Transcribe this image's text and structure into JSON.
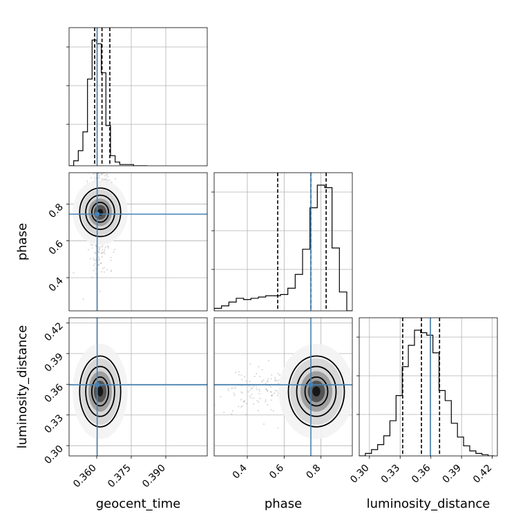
{
  "chart_data": {
    "type": "corner",
    "parameters": [
      "geocent_time",
      "phase",
      "luminosity_distance"
    ],
    "axis_labels": {
      "geocent_time": "geocent_time",
      "phase": "phase",
      "luminosity_distance": "luminosity_distance"
    },
    "ranges": {
      "geocent_time": [
        0.348,
        0.408
      ],
      "phase": [
        0.22,
        0.97
      ],
      "luminosity_distance": [
        0.29,
        0.425
      ]
    },
    "ticks": {
      "geocent_time": {
        "values": [
          0.36,
          0.375,
          0.39
        ],
        "labels": [
          "0.360",
          "0.375",
          "0.390"
        ]
      },
      "phase": {
        "values": [
          0.4,
          0.6,
          0.8
        ],
        "labels": [
          "0.4",
          "0.6",
          "0.8"
        ]
      },
      "luminosity_distance": {
        "values": [
          0.3,
          0.33,
          0.36,
          0.39,
          0.42
        ],
        "labels": [
          "0.30",
          "0.33",
          "0.36",
          "0.39",
          "0.42"
        ]
      }
    },
    "truths": {
      "geocent_time": 0.3602,
      "phase": 0.745,
      "luminosity_distance": 0.3595
    },
    "quantiles": {
      "geocent_time": [
        0.3591,
        0.3623,
        0.3657
      ],
      "phase": [
        0.565,
        0.745,
        0.828
      ],
      "luminosity_distance": [
        0.3325,
        0.3508,
        0.3685
      ]
    },
    "histograms": {
      "geocent_time": {
        "bin_edges": [
          0.348,
          0.35,
          0.352,
          0.354,
          0.356,
          0.358,
          0.36,
          0.362,
          0.364,
          0.366,
          0.368,
          0.37,
          0.372,
          0.374,
          0.376,
          0.378,
          0.38,
          0.382
        ],
        "counts": [
          0,
          4,
          12,
          27,
          69,
          100,
          97,
          74,
          32,
          8,
          3,
          1,
          1,
          1,
          0,
          0,
          0
        ]
      },
      "phase": {
        "bin_edges": [
          0.22,
          0.26,
          0.3,
          0.34,
          0.38,
          0.42,
          0.46,
          0.5,
          0.54,
          0.58,
          0.62,
          0.66,
          0.7,
          0.74,
          0.78,
          0.82,
          0.86,
          0.9,
          0.94,
          0.97
        ],
        "counts": [
          2,
          4,
          7,
          10,
          9,
          10,
          11,
          12,
          12,
          13,
          18,
          29,
          49,
          82,
          100,
          98,
          50,
          15,
          0
        ]
      },
      "luminosity_distance": {
        "bin_edges": [
          0.29,
          0.296,
          0.302,
          0.308,
          0.314,
          0.32,
          0.326,
          0.332,
          0.338,
          0.344,
          0.35,
          0.356,
          0.362,
          0.368,
          0.374,
          0.38,
          0.386,
          0.392,
          0.398,
          0.404,
          0.41,
          0.416,
          0.422
        ],
        "counts": [
          0,
          2,
          5,
          9,
          16,
          28,
          48,
          71,
          88,
          100,
          98,
          96,
          82,
          52,
          44,
          26,
          15,
          8,
          4,
          2,
          1,
          0
        ]
      }
    },
    "posterior_peaks": {
      "geocent_time_phase": {
        "x": 0.3615,
        "y": 0.755
      },
      "geocent_time_luminosity_distance": {
        "x": 0.3615,
        "y": 0.353
      },
      "phase_luminosity_distance": {
        "x": 0.775,
        "y": 0.353
      }
    },
    "colors": {
      "truth": "#4682b4",
      "contour": "#000000",
      "grid": "#b0b0b0",
      "samples": "#7a7a7a"
    }
  }
}
